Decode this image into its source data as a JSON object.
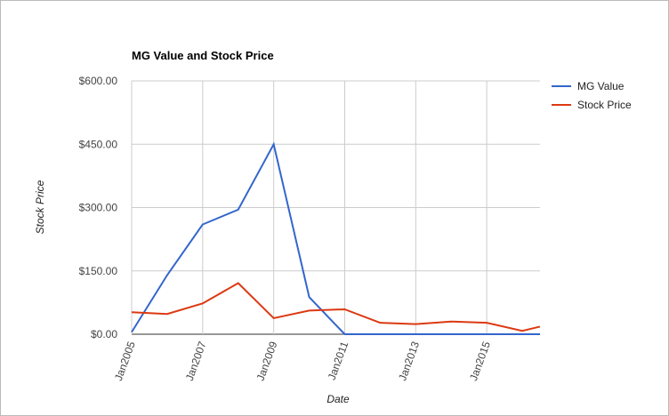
{
  "chart_data": {
    "type": "line",
    "title": "MG Value and Stock Price",
    "x_label": "Date",
    "y_label": "Stock Price",
    "x": [
      2005,
      2006,
      2007,
      2008,
      2009,
      2010,
      2011,
      2012,
      2013,
      2014,
      2015,
      2016,
      2016.5
    ],
    "xlim": [
      2005,
      2016.5
    ],
    "xticks": [
      {
        "value": 2005,
        "label": "Jan2005"
      },
      {
        "value": 2007,
        "label": "Jan2007"
      },
      {
        "value": 2009,
        "label": "Jan2009"
      },
      {
        "value": 2011,
        "label": "Jan2011"
      },
      {
        "value": 2013,
        "label": "Jan2013"
      },
      {
        "value": 2015,
        "label": "Jan2015"
      }
    ],
    "ylim": [
      0,
      600
    ],
    "yticks": [
      {
        "value": 0,
        "label": "$0.00"
      },
      {
        "value": 150,
        "label": "$150.00"
      },
      {
        "value": 300,
        "label": "$300.00"
      },
      {
        "value": 450,
        "label": "$450.00"
      },
      {
        "value": 600,
        "label": "$600.00"
      }
    ],
    "grid": true,
    "legend": "right",
    "series": [
      {
        "name": "MG Value",
        "color": "#3366cc",
        "values": [
          5,
          140,
          260,
          295,
          450,
          88,
          0,
          0,
          0,
          0,
          0,
          0,
          0
        ]
      },
      {
        "name": "Stock Price",
        "color": "#dc3912",
        "values": [
          52,
          48,
          73,
          121,
          38,
          56,
          59,
          27,
          24,
          30,
          27,
          8,
          18
        ]
      }
    ]
  }
}
